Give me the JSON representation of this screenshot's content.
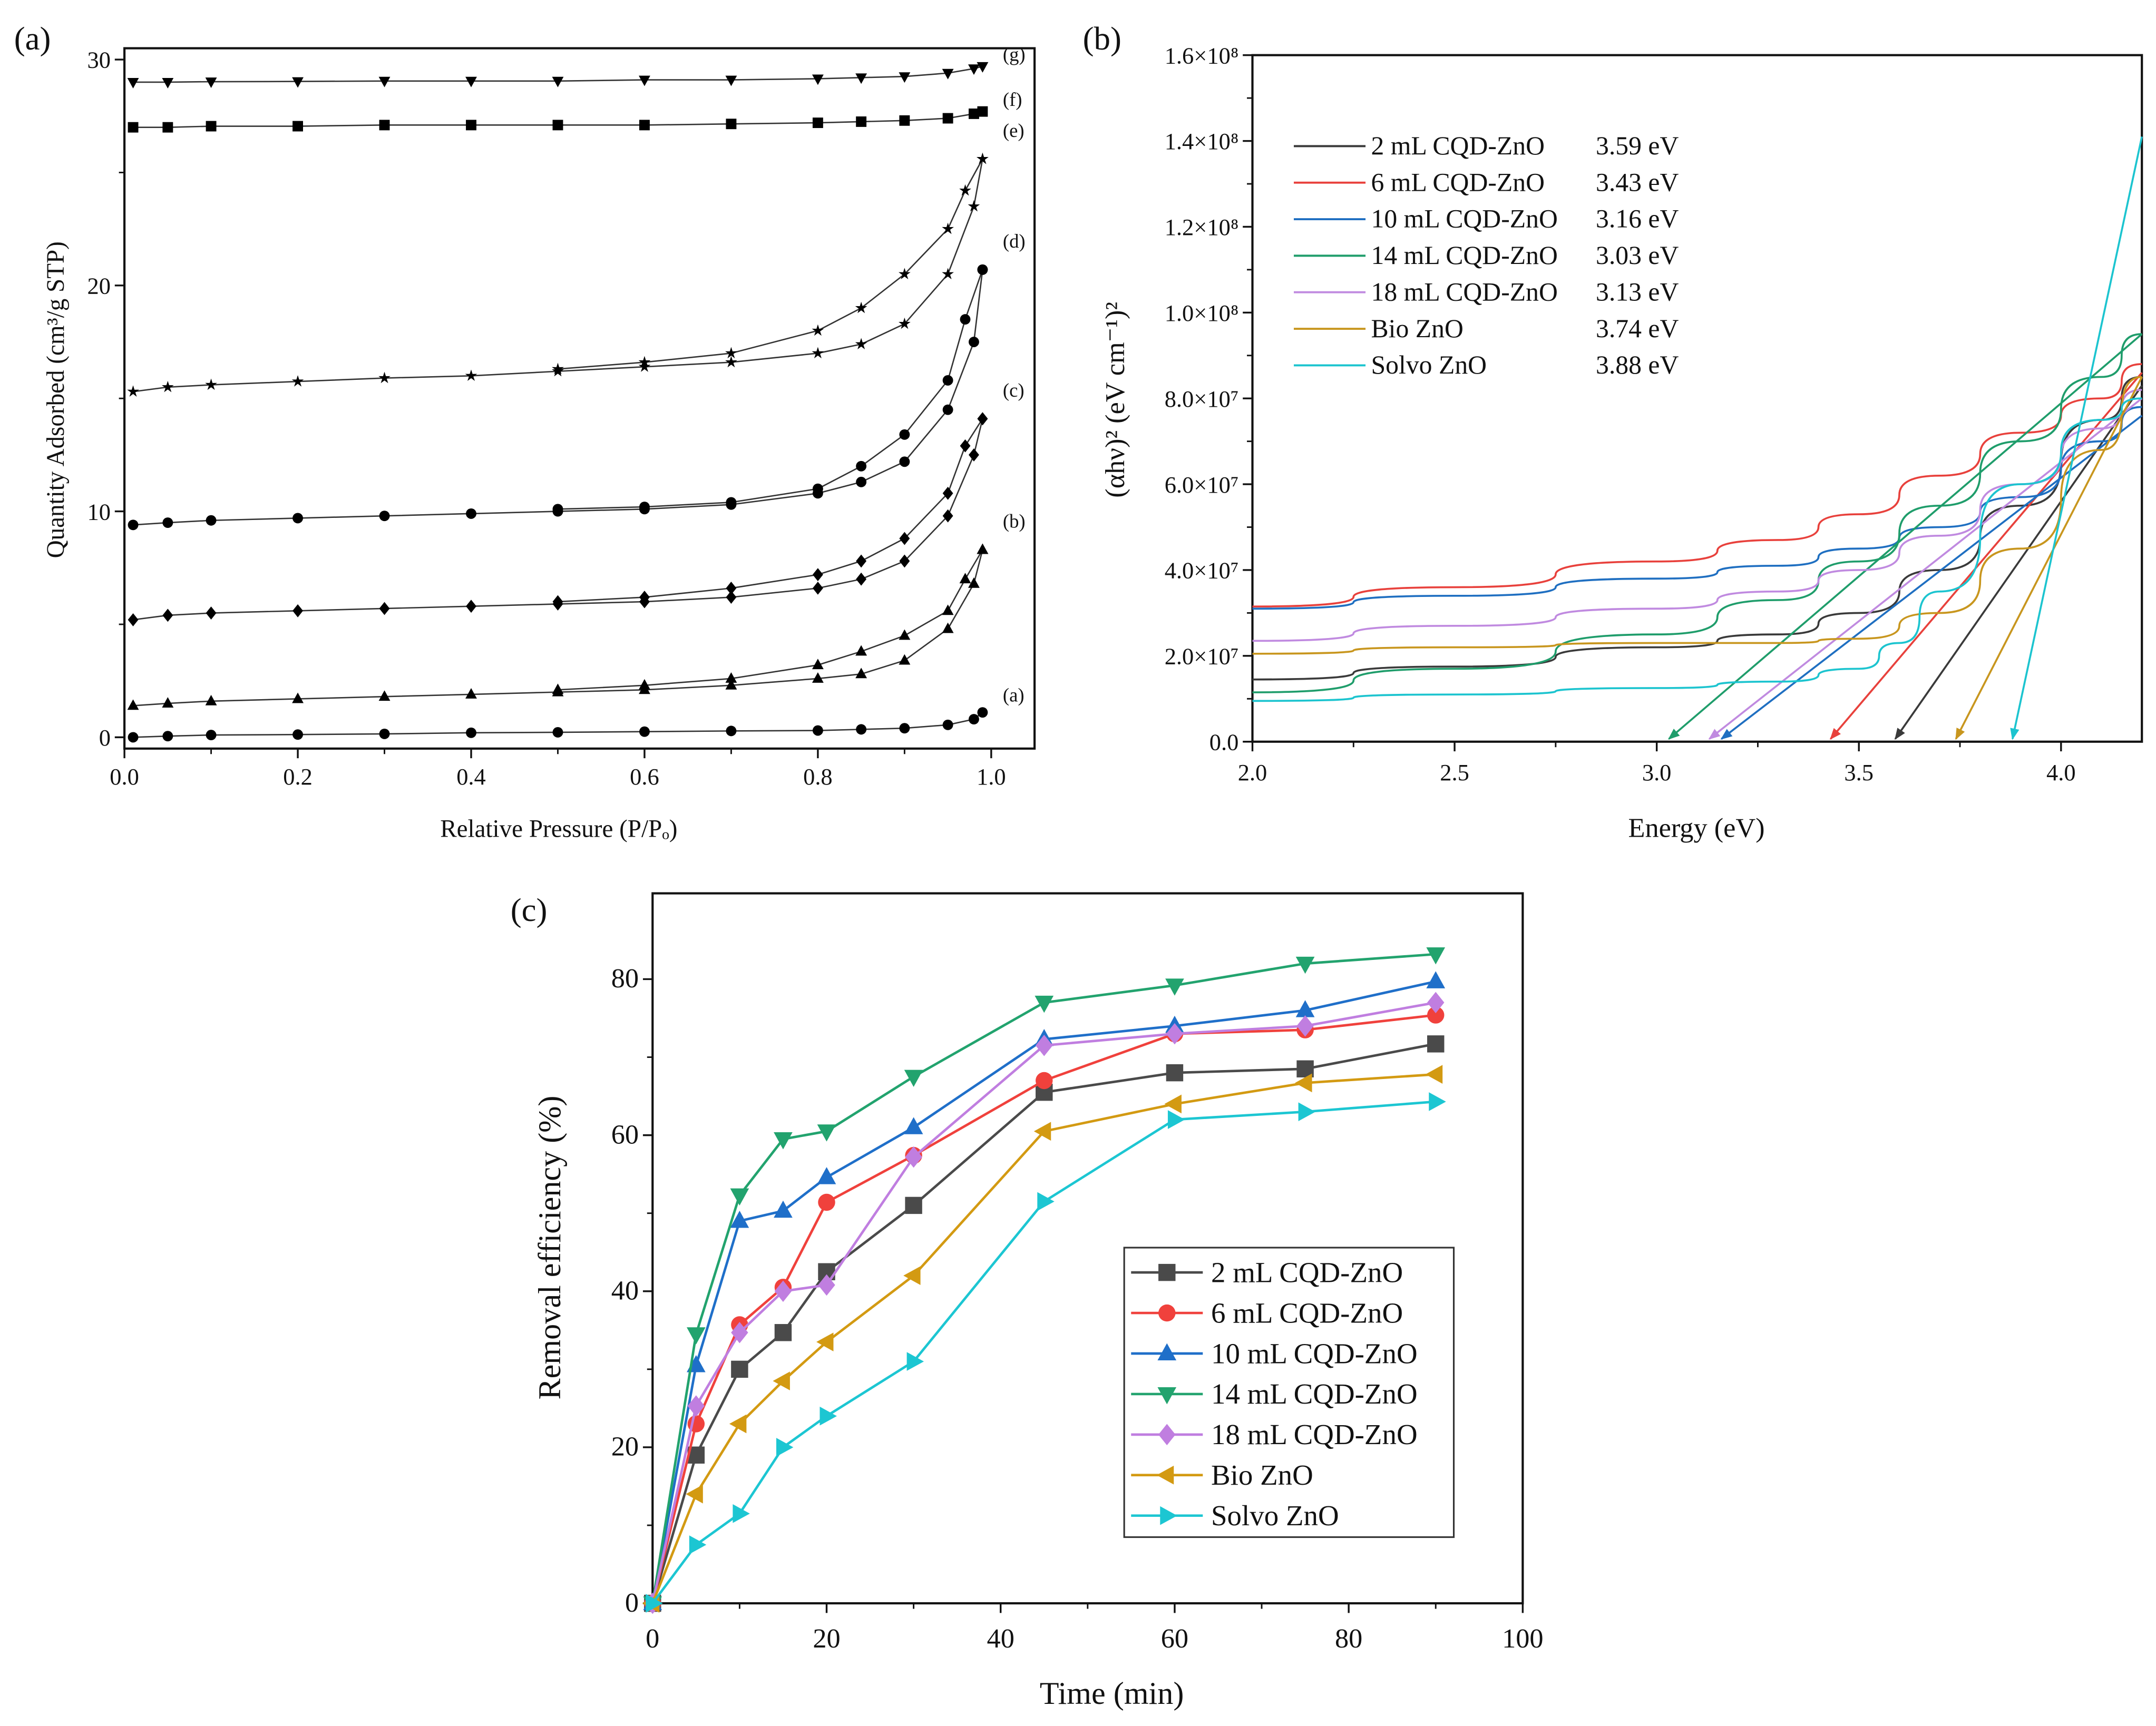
{
  "chart_data": [
    {
      "panel": "(a)",
      "type": "scatter",
      "xlabel": "Relative Pressure (P/Pₒ)",
      "ylabel": "Quantity Adsorbed (cm³/g STP)",
      "xlim": [
        0,
        1.05
      ],
      "ylim": [
        -0.5,
        30.5
      ],
      "xticks": [
        0,
        0.2,
        0.4,
        0.6,
        0.8,
        1.0
      ],
      "xtick_labels": [
        "0.0",
        "0.2",
        "0.4",
        "0.6",
        "0.8",
        "1.0"
      ],
      "yticks": [
        0,
        10,
        20,
        30
      ],
      "ytick_labels": [
        "0",
        "10",
        "20",
        "30"
      ],
      "ads_x": [
        0.01,
        0.05,
        0.1,
        0.2,
        0.3,
        0.4,
        0.5,
        0.6,
        0.7,
        0.8,
        0.85,
        0.9,
        0.95,
        0.98,
        0.99
      ],
      "des_x": [
        0.99,
        0.97,
        0.95,
        0.9,
        0.85,
        0.8,
        0.7,
        0.6,
        0.5
      ],
      "series": [
        {
          "name": "(a)",
          "marker": "circle",
          "ads": [
            0,
            0.05,
            0.1,
            0.12,
            0.15,
            0.2,
            0.22,
            0.25,
            0.28,
            0.3,
            0.35,
            0.4,
            0.55,
            0.8,
            1.1
          ],
          "des": []
        },
        {
          "name": "(b)",
          "marker": "tri-up",
          "ads": [
            1.4,
            1.5,
            1.6,
            1.7,
            1.8,
            1.9,
            2.0,
            2.1,
            2.3,
            2.6,
            2.8,
            3.4,
            4.8,
            6.8,
            8.3
          ],
          "des": [
            8.3,
            7.0,
            5.6,
            4.5,
            3.8,
            3.2,
            2.6,
            2.3,
            2.1
          ]
        },
        {
          "name": "(c)",
          "marker": "diamond",
          "ads": [
            5.2,
            5.4,
            5.5,
            5.6,
            5.7,
            5.8,
            5.9,
            6.0,
            6.2,
            6.6,
            7.0,
            7.8,
            9.8,
            12.5,
            14.1
          ],
          "des": [
            14.1,
            12.9,
            10.8,
            8.8,
            7.8,
            7.2,
            6.6,
            6.2,
            6.0
          ]
        },
        {
          "name": "(d)",
          "marker": "circle",
          "ads": [
            9.4,
            9.5,
            9.6,
            9.7,
            9.8,
            9.9,
            10.0,
            10.1,
            10.3,
            10.8,
            11.3,
            12.2,
            14.5,
            17.5,
            20.7
          ],
          "des": [
            20.7,
            18.5,
            15.8,
            13.4,
            12.0,
            11.0,
            10.4,
            10.2,
            10.1
          ]
        },
        {
          "name": "(e)",
          "marker": "star",
          "ads": [
            15.3,
            15.5,
            15.6,
            15.75,
            15.9,
            16.0,
            16.2,
            16.4,
            16.6,
            17.0,
            17.4,
            18.3,
            20.5,
            23.5,
            25.6
          ],
          "des": [
            25.6,
            24.2,
            22.5,
            20.5,
            19.0,
            18.0,
            17.0,
            16.6,
            16.3
          ]
        },
        {
          "name": "(f)",
          "marker": "square",
          "ads": [
            27,
            27,
            27.05,
            27.05,
            27.1,
            27.1,
            27.1,
            27.1,
            27.15,
            27.2,
            27.25,
            27.3,
            27.4,
            27.6,
            27.7
          ],
          "des": []
        },
        {
          "name": "(g)",
          "marker": "tri-down",
          "ads": [
            29,
            29,
            29.02,
            29.03,
            29.05,
            29.05,
            29.05,
            29.1,
            29.1,
            29.15,
            29.2,
            29.25,
            29.4,
            29.6,
            29.7
          ],
          "des": []
        }
      ]
    },
    {
      "panel": "(b)",
      "type": "line",
      "xlabel": "Energy (eV)",
      "ylabel": "(αhν)² (eV cm⁻¹)²",
      "xlim": [
        2.0,
        4.2
      ],
      "ylim": [
        0,
        160000000.0
      ],
      "xticks": [
        2.0,
        2.5,
        3.0,
        3.5,
        4.0
      ],
      "xtick_labels": [
        "2.0",
        "2.5",
        "3.0",
        "3.5",
        "4.0"
      ],
      "yticks": [
        0,
        20000000.0,
        40000000.0,
        60000000.0,
        80000000.0,
        100000000.0,
        120000000.0,
        140000000.0,
        160000000.0
      ],
      "ytick_labels": [
        "0.0",
        "2.0×10⁷",
        "4.0×10⁷",
        "6.0×10⁷",
        "8.0×10⁷",
        "1.0×10⁸",
        "1.2×10⁸",
        "1.4×10⁸",
        "1.6×10⁸"
      ],
      "legend_position": "top-left",
      "series": [
        {
          "name": "2 mL CQD-ZnO",
          "bandgap": "3.59 eV",
          "eg": 3.59,
          "tangent_end": 83000000.0,
          "color": "#3a3a3a",
          "x": [
            2.0,
            2.5,
            3.0,
            3.3,
            3.5,
            3.7,
            3.9,
            4.1,
            4.2
          ],
          "y": [
            14500000.0,
            17500000.0,
            22000000.0,
            25000000.0,
            30000000.0,
            40000000.0,
            55000000.0,
            75000000.0,
            85000000.0
          ]
        },
        {
          "name": "6 mL CQD-ZnO",
          "bandgap": "3.43 eV",
          "eg": 3.43,
          "tangent_end": 86000000.0,
          "color": "#e8413c",
          "x": [
            2.0,
            2.5,
            3.0,
            3.3,
            3.5,
            3.7,
            3.9,
            4.1,
            4.2
          ],
          "y": [
            31500000.0,
            36000000.0,
            42000000.0,
            47000000.0,
            53000000.0,
            62000000.0,
            72000000.0,
            80000000.0,
            88000000.0
          ]
        },
        {
          "name": "10 mL CQD-ZnO",
          "bandgap": "3.16 eV",
          "eg": 3.16,
          "tangent_end": 76000000.0,
          "color": "#1f6fc1",
          "x": [
            2.0,
            2.5,
            3.0,
            3.3,
            3.5,
            3.7,
            3.9,
            4.1,
            4.2
          ],
          "y": [
            31000000.0,
            34000000.0,
            38000000.0,
            41000000.0,
            45000000.0,
            50000000.0,
            57000000.0,
            70000000.0,
            78000000.0
          ]
        },
        {
          "name": "14 mL CQD-ZnO",
          "bandgap": "3.03 eV",
          "eg": 3.03,
          "tangent_end": 95000000.0,
          "color": "#1f9d6b",
          "x": [
            2.0,
            2.5,
            3.0,
            3.3,
            3.5,
            3.7,
            3.9,
            4.1,
            4.2
          ],
          "y": [
            11500000.0,
            17000000.0,
            25000000.0,
            33000000.0,
            42000000.0,
            55000000.0,
            70000000.0,
            85000000.0,
            95000000.0
          ]
        },
        {
          "name": "18 mL CQD-ZnO",
          "bandgap": "3.13 eV",
          "eg": 3.13,
          "tangent_end": 80000000.0,
          "color": "#c08ae0",
          "x": [
            2.0,
            2.5,
            3.0,
            3.3,
            3.5,
            3.7,
            3.9,
            4.1,
            4.2
          ],
          "y": [
            23500000.0,
            27000000.0,
            31000000.0,
            35000000.0,
            40000000.0,
            48000000.0,
            60000000.0,
            73000000.0,
            82000000.0
          ]
        },
        {
          "name": "Bio ZnO",
          "bandgap": "3.74 eV",
          "eg": 3.74,
          "tangent_end": 85000000.0,
          "color": "#c8961e",
          "x": [
            2.0,
            2.5,
            3.0,
            3.3,
            3.5,
            3.7,
            3.9,
            4.1,
            4.2
          ],
          "y": [
            20500000.0,
            22000000.0,
            23000000.0,
            23000000.0,
            24000000.0,
            30000000.0,
            45000000.0,
            68000000.0,
            85000000.0
          ]
        },
        {
          "name": "Solvo ZnO",
          "bandgap": "3.88 eV",
          "eg": 3.88,
          "tangent_end": 141000000.0,
          "color": "#1cc4cf",
          "x": [
            2.0,
            2.5,
            3.0,
            3.3,
            3.5,
            3.6,
            3.7,
            3.9,
            4.1,
            4.2
          ],
          "y": [
            9500000.0,
            11000000.0,
            12500000.0,
            14000000.0,
            17000000.0,
            23000000.0,
            35000000.0,
            60000000.0,
            75000000.0,
            80000000.0
          ]
        }
      ]
    },
    {
      "panel": "(c)",
      "type": "line",
      "xlabel": "Time (min)",
      "ylabel": "Removal efficiency (%)",
      "xlim": [
        0,
        100
      ],
      "ylim": [
        0,
        91
      ],
      "xticks": [
        0,
        20,
        40,
        60,
        80,
        100
      ],
      "xtick_labels": [
        "0",
        "20",
        "40",
        "60",
        "80",
        "100"
      ],
      "yticks": [
        0,
        20,
        40,
        60,
        80
      ],
      "ytick_labels": [
        "0",
        "20",
        "40",
        "60",
        "80"
      ],
      "legend_position": "bottom-right",
      "x": [
        0,
        5,
        10,
        15,
        20,
        30,
        45,
        60,
        75,
        90
      ],
      "series": [
        {
          "name": "2 mL CQD-ZnO",
          "marker": "square",
          "color": "#4a4a4a",
          "values": [
            0,
            19,
            30,
            34.7,
            42.5,
            51,
            65.5,
            68,
            68.5,
            71.7
          ]
        },
        {
          "name": "6 mL CQD-ZnO",
          "marker": "circle",
          "color": "#f0413c",
          "values": [
            0,
            23,
            35.7,
            40.5,
            51.4,
            57.4,
            67,
            73,
            73.5,
            75.4
          ]
        },
        {
          "name": "10 mL CQD-ZnO",
          "marker": "tri-up",
          "color": "#1f6fc9",
          "values": [
            0,
            30.5,
            49,
            50.3,
            54.6,
            61,
            72.3,
            74,
            76,
            79.7
          ]
        },
        {
          "name": "14 mL CQD-ZnO",
          "marker": "tri-down",
          "color": "#22a36e",
          "values": [
            0,
            34.5,
            52.3,
            59.5,
            60.5,
            67.5,
            77,
            79.2,
            82,
            83.2
          ]
        },
        {
          "name": "18 mL CQD-ZnO",
          "marker": "diamond",
          "color": "#c07ee0",
          "values": [
            0,
            25.3,
            34.7,
            40,
            40.8,
            57.2,
            71.5,
            73,
            74,
            77
          ]
        },
        {
          "name": "Bio ZnO",
          "marker": "tri-left",
          "color": "#d39a12",
          "values": [
            0,
            14,
            23,
            28.5,
            33.5,
            42,
            60.5,
            64,
            66.7,
            67.8
          ]
        },
        {
          "name": "Solvo ZnO",
          "marker": "tri-right",
          "color": "#1cc6d2",
          "values": [
            0,
            7.5,
            11.5,
            20,
            24,
            31,
            51.5,
            62,
            63,
            64.3
          ]
        }
      ]
    }
  ]
}
